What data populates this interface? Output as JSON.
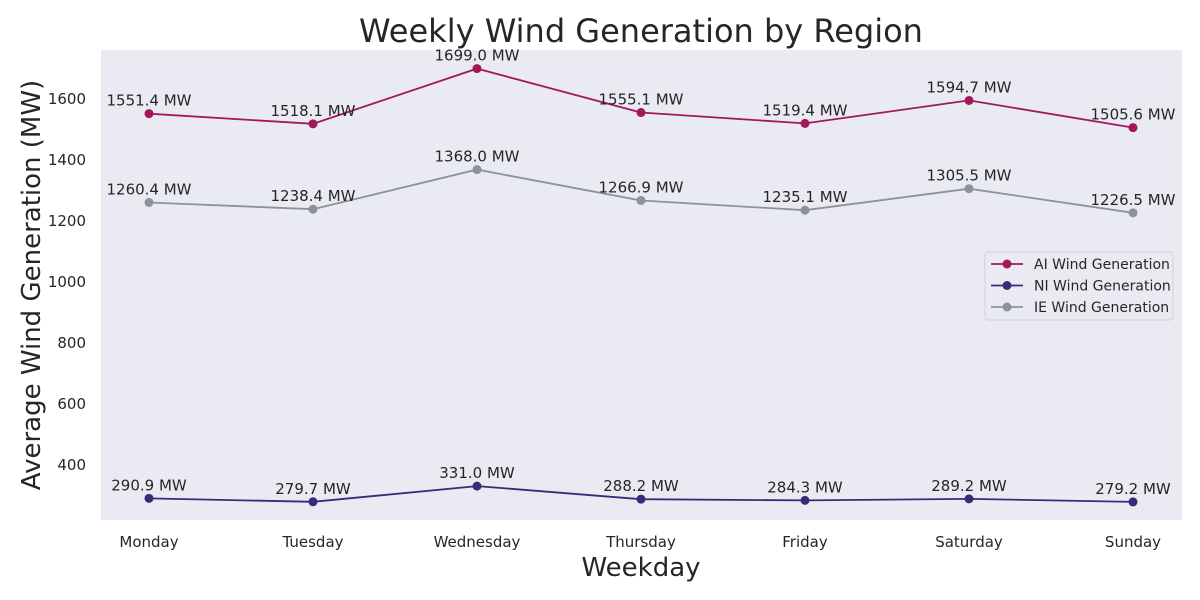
{
  "chart_data": {
    "type": "line",
    "title": "Weekly Wind Generation by Region",
    "xlabel": "Weekday",
    "ylabel": "Average Wind Generation (MW)",
    "categories": [
      "Monday",
      "Tuesday",
      "Wednesday",
      "Thursday",
      "Friday",
      "Saturday",
      "Sunday"
    ],
    "ylim": [
      220,
      1760
    ],
    "yticks": [
      400,
      600,
      800,
      1000,
      1200,
      1400,
      1600
    ],
    "grid": false,
    "legend_position": "center-right",
    "value_suffix": " MW",
    "series": [
      {
        "name": "AI Wind Generation",
        "color": "#a2185b",
        "values": [
          1551.4,
          1518.1,
          1699.0,
          1555.1,
          1519.4,
          1594.7,
          1505.6
        ],
        "labels": [
          "1551.4 MW",
          "1518.1 MW",
          "1699.0 MW",
          "1555.1 MW",
          "1519.4 MW",
          "1594.7 MW",
          "1505.6 MW"
        ]
      },
      {
        "name": "NI Wind Generation",
        "color": "#3b2a7a",
        "values": [
          290.9,
          279.7,
          331.0,
          288.2,
          284.3,
          289.2,
          279.2
        ],
        "labels": [
          "290.9 MW",
          "279.7 MW",
          "331.0 MW",
          "288.2 MW",
          "284.3 MW",
          "289.2 MW",
          "279.2 MW"
        ]
      },
      {
        "name": "IE Wind Generation",
        "color": "#8a939c",
        "values": [
          1260.4,
          1238.4,
          1368.0,
          1266.9,
          1235.1,
          1305.5,
          1226.5
        ],
        "labels": [
          "1260.4 MW",
          "1238.4 MW",
          "1368.0 MW",
          "1266.9 MW",
          "1235.1 MW",
          "1305.5 MW",
          "1226.5 MW"
        ]
      }
    ]
  }
}
